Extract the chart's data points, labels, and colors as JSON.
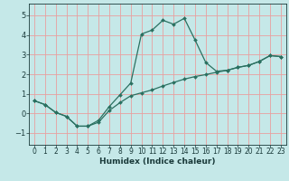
{
  "xlabel": "Humidex (Indice chaleur)",
  "bg_color": "#c5e8e8",
  "grid_color": "#e8a0a0",
  "line_color": "#2a7060",
  "marker_color": "#2a7060",
  "xlim": [
    -0.5,
    23.5
  ],
  "ylim": [
    -1.6,
    5.6
  ],
  "xticks": [
    0,
    1,
    2,
    3,
    4,
    5,
    6,
    7,
    8,
    9,
    10,
    11,
    12,
    13,
    14,
    15,
    16,
    17,
    18,
    19,
    20,
    21,
    22,
    23
  ],
  "yticks": [
    -1,
    0,
    1,
    2,
    3,
    4,
    5
  ],
  "curve_x": [
    0,
    1,
    2,
    3,
    4,
    5,
    6,
    7,
    8,
    9,
    10,
    11,
    12,
    13,
    14,
    15,
    16,
    17,
    18,
    19,
    20,
    21,
    22,
    23
  ],
  "curve_y": [
    0.65,
    0.45,
    0.05,
    -0.15,
    -0.65,
    -0.65,
    -0.35,
    0.35,
    0.95,
    1.55,
    4.05,
    4.25,
    4.75,
    4.55,
    4.85,
    3.75,
    2.6,
    2.15,
    2.2,
    2.35,
    2.45,
    2.65,
    2.95,
    2.9
  ],
  "line_x": [
    0,
    1,
    2,
    3,
    4,
    5,
    6,
    7,
    8,
    9,
    10,
    11,
    12,
    13,
    14,
    15,
    16,
    17,
    18,
    19,
    20,
    21,
    22,
    23
  ],
  "line_y": [
    0.65,
    0.45,
    0.05,
    -0.15,
    -0.65,
    -0.65,
    -0.45,
    0.15,
    0.55,
    0.9,
    1.05,
    1.2,
    1.4,
    1.58,
    1.75,
    1.88,
    1.98,
    2.1,
    2.2,
    2.35,
    2.45,
    2.65,
    2.95,
    2.9
  ]
}
